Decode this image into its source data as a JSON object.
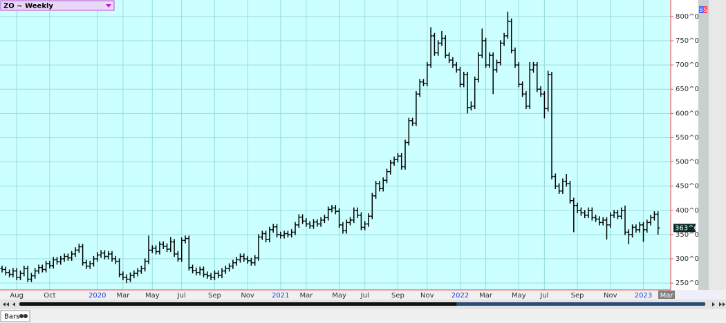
{
  "chart_data": {
    "type": "ohlc",
    "title": "ZO ~ Weekly",
    "categories": [
      null,
      null,
      null,
      null,
      "Aug",
      null,
      null,
      null,
      null,
      null,
      null,
      null,
      null,
      "Oct",
      null,
      null,
      null,
      null,
      null,
      null,
      null,
      null,
      null,
      null,
      null,
      null,
      "2020",
      null,
      null,
      null,
      null,
      null,
      null,
      "Mar",
      null,
      null,
      null,
      null,
      null,
      null,
      null,
      "May",
      null,
      null,
      null,
      null,
      null,
      null,
      null,
      "Jul",
      null,
      null,
      null,
      null,
      null,
      null,
      null,
      null,
      "Sep",
      null,
      null,
      null,
      null,
      null,
      null,
      null,
      null,
      "Nov",
      null,
      null,
      null,
      null,
      null,
      null,
      null,
      null,
      "2021",
      null,
      null,
      null,
      null,
      null,
      null,
      "Mar",
      null,
      null,
      null,
      null,
      null,
      null,
      null,
      null,
      "May",
      null,
      null,
      null,
      null,
      null,
      null,
      "Jul",
      null,
      null,
      null,
      null,
      null,
      null,
      null,
      null,
      "Sep",
      null,
      null,
      null,
      null,
      null,
      null,
      null,
      "Nov",
      null,
      null,
      null,
      null,
      null,
      null,
      null,
      null,
      "2022",
      null,
      null,
      null,
      null,
      null,
      null,
      "Mar",
      null,
      null,
      null,
      null,
      null,
      null,
      null,
      null,
      "May",
      null,
      null,
      null,
      null,
      null,
      null,
      "Jul",
      null,
      null,
      null,
      null,
      null,
      null,
      null,
      null,
      "Sep",
      null,
      null,
      null,
      null,
      null,
      null,
      null,
      null,
      "Nov",
      null,
      null,
      null,
      null,
      null,
      null,
      null,
      null,
      "2023",
      null,
      null,
      null,
      null
    ],
    "year_labels": [
      "2020",
      "2021",
      "2022",
      "2023"
    ],
    "open": [
      280,
      278,
      272,
      268,
      275,
      262,
      270,
      280,
      258,
      265,
      275,
      282,
      278,
      290,
      286,
      298,
      294,
      300,
      305,
      302,
      310,
      318,
      325,
      292,
      285,
      290,
      300,
      308,
      312,
      305,
      310,
      300,
      295,
      268,
      262,
      258,
      266,
      270,
      275,
      280,
      295,
      318,
      322,
      315,
      330,
      326,
      320,
      335,
      310,
      300,
      338,
      342,
      282,
      276,
      272,
      278,
      268,
      265,
      262,
      270,
      266,
      275,
      280,
      285,
      292,
      298,
      305,
      300,
      296,
      292,
      302,
      345,
      352,
      340,
      360,
      366,
      350,
      348,
      352,
      350,
      355,
      370,
      386,
      378,
      372,
      368,
      376,
      372,
      380,
      385,
      402,
      405,
      398,
      370,
      358,
      375,
      380,
      400,
      390,
      365,
      372,
      388,
      430,
      455,
      445,
      462,
      480,
      498,
      505,
      512,
      490,
      540,
      585,
      580,
      640,
      665,
      662,
      700,
      760,
      725,
      745,
      755,
      720,
      710,
      700,
      690,
      660,
      680,
      612,
      615,
      670,
      720,
      750,
      700,
      720,
      690,
      705,
      745,
      760,
      790,
      730,
      700,
      660,
      640,
      615,
      690,
      700,
      650,
      640,
      610,
      680,
      470,
      450,
      440,
      460,
      455,
      420,
      410,
      400,
      395,
      390,
      400,
      385,
      382,
      375,
      380,
      370,
      390,
      395,
      388,
      400,
      355,
      350,
      365,
      360,
      370,
      360,
      375,
      385,
      392
    ],
    "high": [
      286,
      284,
      278,
      281,
      281,
      276,
      286,
      286,
      271,
      281,
      288,
      288,
      296,
      296,
      304,
      304,
      306,
      311,
      311,
      316,
      324,
      331,
      331,
      298,
      296,
      306,
      314,
      318,
      318,
      316,
      316,
      306,
      301,
      274,
      268,
      272,
      276,
      281,
      286,
      301,
      348,
      328,
      328,
      336,
      336,
      332,
      345,
      341,
      316,
      344,
      348,
      348,
      288,
      282,
      284,
      284,
      274,
      271,
      276,
      276,
      281,
      286,
      291,
      298,
      304,
      311,
      311,
      306,
      302,
      308,
      351,
      358,
      358,
      366,
      372,
      372,
      356,
      358,
      358,
      361,
      376,
      392,
      392,
      384,
      378,
      382,
      382,
      386,
      391,
      408,
      411,
      411,
      404,
      376,
      381,
      386,
      406,
      406,
      396,
      378,
      394,
      436,
      461,
      461,
      468,
      486,
      504,
      511,
      518,
      518,
      546,
      591,
      591,
      646,
      671,
      671,
      706,
      778,
      766,
      751,
      770,
      761,
      726,
      716,
      706,
      696,
      686,
      686,
      625,
      676,
      726,
      775,
      756,
      726,
      726,
      711,
      751,
      766,
      810,
      796,
      736,
      706,
      666,
      646,
      706,
      706,
      706,
      656,
      646,
      688,
      686,
      476,
      456,
      466,
      475,
      461,
      426,
      416,
      406,
      401,
      406,
      406,
      391,
      388,
      386,
      386,
      396,
      401,
      401,
      406,
      410,
      361,
      371,
      371,
      376,
      376,
      381,
      391,
      398,
      398
    ],
    "low": [
      272,
      266,
      262,
      262,
      256,
      256,
      264,
      252,
      252,
      259,
      269,
      272,
      272,
      280,
      280,
      288,
      288,
      294,
      296,
      296,
      304,
      312,
      286,
      279,
      279,
      284,
      294,
      302,
      299,
      299,
      294,
      289,
      262,
      256,
      250,
      252,
      260,
      264,
      269,
      274,
      289,
      312,
      309,
      309,
      320,
      314,
      314,
      304,
      294,
      294,
      332,
      276,
      270,
      266,
      266,
      262,
      259,
      256,
      256,
      260,
      260,
      269,
      274,
      279,
      286,
      292,
      294,
      290,
      286,
      286,
      296,
      339,
      334,
      334,
      354,
      344,
      342,
      342,
      344,
      344,
      349,
      364,
      372,
      366,
      362,
      362,
      366,
      366,
      374,
      379,
      396,
      392,
      364,
      352,
      352,
      369,
      374,
      384,
      359,
      359,
      366,
      382,
      424,
      439,
      439,
      456,
      474,
      492,
      499,
      484,
      484,
      534,
      574,
      574,
      634,
      656,
      656,
      694,
      719,
      719,
      739,
      714,
      704,
      694,
      684,
      654,
      654,
      600,
      606,
      609,
      664,
      714,
      694,
      694,
      640,
      684,
      699,
      739,
      754,
      724,
      694,
      654,
      634,
      609,
      609,
      684,
      644,
      634,
      590,
      604,
      464,
      444,
      434,
      434,
      449,
      414,
      355,
      394,
      389,
      384,
      384,
      379,
      376,
      369,
      369,
      340,
      364,
      384,
      382,
      382,
      349,
      330,
      344,
      354,
      354,
      335,
      354,
      369,
      379,
      350
    ],
    "close": [
      278,
      272,
      268,
      275,
      262,
      270,
      280,
      258,
      265,
      275,
      282,
      278,
      290,
      286,
      298,
      294,
      300,
      305,
      302,
      310,
      318,
      325,
      292,
      285,
      290,
      300,
      308,
      312,
      305,
      310,
      300,
      295,
      268,
      262,
      258,
      266,
      270,
      275,
      280,
      295,
      318,
      322,
      315,
      330,
      326,
      320,
      335,
      310,
      300,
      338,
      342,
      282,
      276,
      272,
      278,
      268,
      265,
      262,
      270,
      266,
      275,
      280,
      285,
      292,
      298,
      305,
      300,
      296,
      292,
      302,
      345,
      352,
      340,
      360,
      366,
      350,
      348,
      352,
      350,
      355,
      370,
      386,
      378,
      372,
      368,
      376,
      372,
      380,
      385,
      402,
      405,
      398,
      370,
      358,
      375,
      380,
      400,
      390,
      365,
      372,
      388,
      430,
      455,
      445,
      462,
      480,
      498,
      505,
      512,
      490,
      540,
      585,
      580,
      640,
      665,
      662,
      700,
      760,
      725,
      745,
      755,
      720,
      710,
      700,
      690,
      660,
      680,
      612,
      615,
      670,
      720,
      750,
      700,
      720,
      690,
      705,
      745,
      760,
      790,
      730,
      700,
      660,
      640,
      615,
      690,
      700,
      650,
      640,
      610,
      680,
      470,
      450,
      440,
      460,
      455,
      420,
      410,
      400,
      395,
      390,
      400,
      385,
      382,
      375,
      380,
      370,
      390,
      395,
      388,
      400,
      355,
      350,
      365,
      360,
      370,
      360,
      375,
      385,
      392,
      363.75
    ],
    "color": "#000000",
    "ylim": [
      236,
      834
    ],
    "yticks": [
      {
        "value": 250,
        "label": "250^0"
      },
      {
        "value": 300,
        "label": "300^0"
      },
      {
        "value": 350,
        "label": "350^0"
      },
      {
        "value": 400,
        "label": "400^0"
      },
      {
        "value": 450,
        "label": "450^0"
      },
      {
        "value": 500,
        "label": "500^0"
      },
      {
        "value": 550,
        "label": "550^0"
      },
      {
        "value": 600,
        "label": "600^0"
      },
      {
        "value": 650,
        "label": "650^0"
      },
      {
        "value": 700,
        "label": "700^0"
      },
      {
        "value": 750,
        "label": "750^0"
      },
      {
        "value": 800,
        "label": "800^0"
      }
    ],
    "last_price": {
      "value": 363.75,
      "label": "363^6"
    },
    "cursor_label": "Mar",
    "grid": true
  },
  "ui": {
    "side_buttons": [
      "B",
      "S"
    ],
    "tab": "Bars"
  }
}
